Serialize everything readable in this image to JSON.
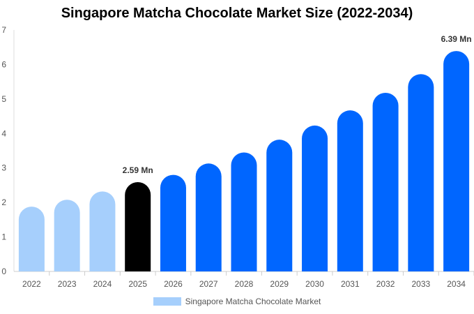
{
  "chart_data": {
    "type": "bar",
    "title": "Singapore Matcha Chocolate Market Size (2022-2034)",
    "categories": [
      "2022",
      "2023",
      "2024",
      "2025",
      "2026",
      "2027",
      "2028",
      "2029",
      "2030",
      "2031",
      "2032",
      "2033",
      "2034"
    ],
    "series": [
      {
        "name": "Singapore Matcha Chocolate Market",
        "values": [
          1.88,
          2.08,
          2.32,
          2.59,
          2.8,
          3.13,
          3.45,
          3.82,
          4.23,
          4.67,
          5.18,
          5.72,
          6.39
        ]
      }
    ],
    "ylim": [
      0,
      7
    ],
    "yticks": [
      "0",
      "1",
      "2",
      "3",
      "4",
      "5",
      "6",
      "7"
    ],
    "grid": false,
    "legend_position": "bottom",
    "annotations": [
      {
        "category": "2025",
        "text": "2.59 Mn"
      },
      {
        "category": "2034",
        "text": "6.39 Mn"
      }
    ],
    "colors": {
      "historical": "#a6cffc",
      "current": "#000000",
      "forecast": "#0066ff"
    },
    "bar_color_groups": [
      "historical",
      "historical",
      "historical",
      "current",
      "forecast",
      "forecast",
      "forecast",
      "forecast",
      "forecast",
      "forecast",
      "forecast",
      "forecast",
      "forecast"
    ]
  }
}
